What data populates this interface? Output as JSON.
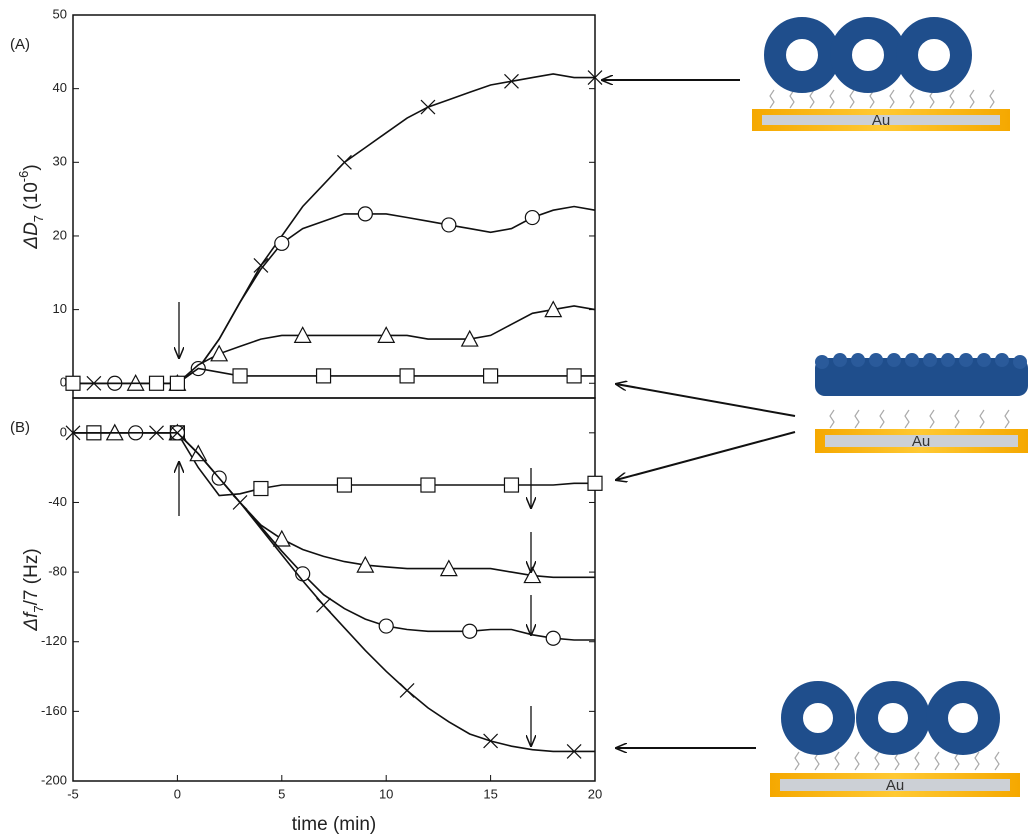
{
  "chart_data": [
    {
      "type": "line",
      "panel_label": "(A)",
      "ylabel_parts": [
        "ΔD",
        "7",
        " (10",
        "-6",
        ")"
      ],
      "x": [
        -5,
        -4,
        -3,
        -2,
        -1,
        0,
        1,
        2,
        3,
        4,
        5,
        6,
        7,
        8,
        9,
        10,
        11,
        12,
        13,
        14,
        15,
        16,
        17,
        18,
        19,
        20
      ],
      "xlim": [
        -5,
        20
      ],
      "ylim": [
        -2,
        50
      ],
      "yticks": [
        0,
        10,
        20,
        30,
        40,
        50
      ],
      "color": "#111111",
      "series": [
        {
          "marker": "x",
          "values": [
            0,
            0,
            0,
            0,
            0,
            0,
            2,
            6,
            11,
            16,
            20,
            24,
            27,
            30,
            32,
            34,
            36,
            37.5,
            38.5,
            39.5,
            40.5,
            41,
            41.5,
            42,
            41.5,
            41.5
          ]
        },
        {
          "marker": "circle",
          "values": [
            0,
            0,
            0,
            0,
            0,
            0,
            2,
            6,
            11,
            15.5,
            19,
            21,
            22,
            23,
            23,
            23,
            22.5,
            22,
            21.5,
            21,
            20.5,
            21,
            22.5,
            23.5,
            24,
            23.5
          ]
        },
        {
          "marker": "triangle",
          "values": [
            0,
            0,
            0,
            0,
            0,
            0,
            2.5,
            4,
            5,
            6,
            6.5,
            6.5,
            6.5,
            6.5,
            6.5,
            6.5,
            6.5,
            6,
            6,
            6,
            6.5,
            8,
            9.5,
            10,
            10.5,
            10
          ]
        },
        {
          "marker": "square",
          "values": [
            0,
            0,
            0,
            0,
            0,
            0,
            2,
            1.5,
            1,
            1,
            1,
            1,
            1,
            1,
            1,
            1,
            1,
            1,
            1,
            1,
            1,
            1,
            1,
            1,
            1,
            1
          ]
        }
      ]
    },
    {
      "type": "line",
      "panel_label": "(B)",
      "ylabel_parts": [
        "Δf",
        "7",
        "/7 (Hz)"
      ],
      "xlabel": "time (min)",
      "x": [
        -5,
        -4,
        -3,
        -2,
        -1,
        0,
        1,
        2,
        3,
        4,
        5,
        6,
        7,
        8,
        9,
        10,
        11,
        12,
        13,
        14,
        15,
        16,
        17,
        18,
        19,
        20
      ],
      "xlim": [
        -5,
        20
      ],
      "xticks": [
        -5,
        0,
        5,
        10,
        15,
        20
      ],
      "ylim": [
        -200,
        20
      ],
      "yticks": [
        0,
        -40,
        -80,
        -120,
        -160,
        -200
      ],
      "color": "#111111",
      "series": [
        {
          "marker": "square",
          "values": [
            0,
            0,
            0,
            0,
            0,
            0,
            -20,
            -36,
            -35,
            -32,
            -30,
            -30,
            -30,
            -30,
            -30,
            -30,
            -30,
            -30,
            -30,
            -30,
            -30,
            -30,
            -30,
            -30,
            -29,
            -29
          ]
        },
        {
          "marker": "triangle",
          "values": [
            0,
            0,
            0,
            0,
            0,
            0,
            -12,
            -26,
            -40,
            -53,
            -61,
            -67,
            -71,
            -74,
            -76,
            -77,
            -78,
            -78,
            -78,
            -78,
            -78,
            -80,
            -82,
            -83,
            -83,
            -83
          ]
        },
        {
          "marker": "circle",
          "values": [
            0,
            0,
            0,
            0,
            0,
            0,
            -12,
            -26,
            -40,
            -54,
            -68,
            -81,
            -93,
            -101,
            -107,
            -111,
            -113,
            -114,
            -114,
            -114,
            -113,
            -113,
            -116,
            -118,
            -119,
            -119
          ]
        },
        {
          "marker": "x",
          "values": [
            0,
            0,
            0,
            0,
            0,
            0,
            -12,
            -26,
            -40,
            -55,
            -70,
            -85,
            -99,
            -112,
            -125,
            -137,
            -148,
            -158,
            -166,
            -173,
            -177,
            -180,
            -182,
            -183,
            -183,
            -183
          ]
        }
      ]
    }
  ],
  "schematic": {
    "labels": [
      "Au",
      "Au",
      "Au"
    ]
  }
}
